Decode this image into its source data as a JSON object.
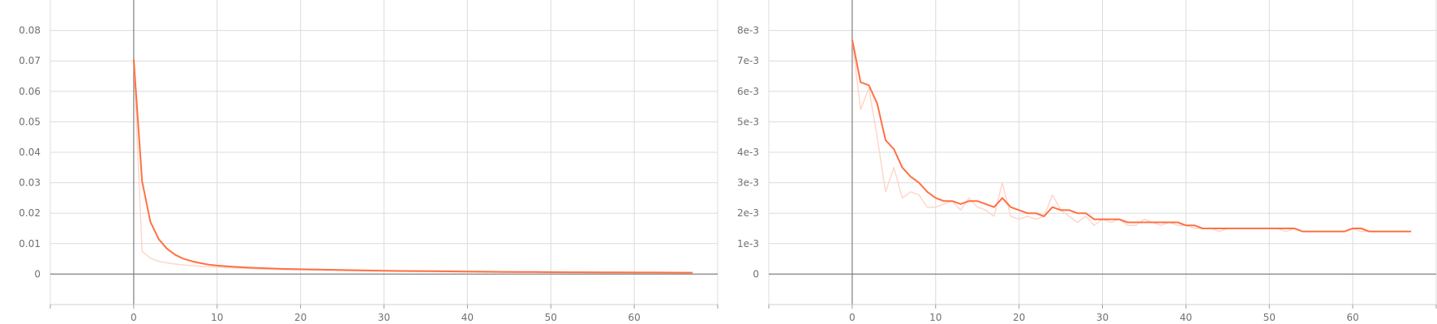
{
  "chart_data": [
    {
      "type": "line",
      "title": "",
      "xlabel": "",
      "ylabel": "",
      "xlim": [
        -10,
        70
      ],
      "ylim": [
        -0.01,
        0.09
      ],
      "grid": true,
      "x_ticks": [
        "0",
        "10",
        "20",
        "30",
        "40",
        "50",
        "60"
      ],
      "x_tick_values": [
        0,
        10,
        20,
        30,
        40,
        50,
        60
      ],
      "y_ticks": [
        "0",
        "0.01",
        "0.02",
        "0.03",
        "0.04",
        "0.05",
        "0.06",
        "0.07",
        "0.08"
      ],
      "y_tick_values": [
        0,
        0.01,
        0.02,
        0.03,
        0.04,
        0.05,
        0.06,
        0.07,
        0.08
      ],
      "colors": {
        "smoothed": "#ff7043",
        "raw": "#ffd6c9",
        "axis": "#808080",
        "grid": "#dcdcdc"
      },
      "series": [
        {
          "style": "raw",
          "x": [
            0,
            1,
            2,
            3,
            4,
            5,
            6,
            7,
            8,
            9,
            10,
            12,
            14,
            16,
            18,
            20,
            22,
            24,
            26,
            28,
            30,
            32,
            34,
            36,
            38,
            40,
            42,
            44,
            46,
            48,
            50,
            52,
            54,
            56,
            58,
            60,
            62,
            64,
            66,
            67
          ],
          "y": [
            0.0705,
            0.0075,
            0.0052,
            0.0042,
            0.0037,
            0.0033,
            0.003,
            0.0028,
            0.0026,
            0.0024,
            0.0023,
            0.002,
            0.0018,
            0.0016,
            0.0015,
            0.0014,
            0.0013,
            0.0012,
            0.0011,
            0.001,
            0.00095,
            0.0009,
            0.00085,
            0.0008,
            0.00075,
            0.0007,
            0.00065,
            0.0006,
            0.00057,
            0.00055,
            0.00052,
            0.0005,
            0.00048,
            0.00046,
            0.00044,
            0.00042,
            0.0004,
            0.00038,
            0.00036,
            0.00035
          ]
        },
        {
          "style": "smoothed",
          "x": [
            0,
            1,
            2,
            3,
            4,
            5,
            6,
            7,
            8,
            9,
            10,
            12,
            14,
            16,
            18,
            20,
            22,
            24,
            26,
            28,
            30,
            32,
            34,
            36,
            38,
            40,
            42,
            44,
            46,
            48,
            50,
            52,
            54,
            56,
            58,
            60,
            62,
            64,
            66,
            67
          ],
          "y": [
            0.0705,
            0.0305,
            0.0172,
            0.0115,
            0.0083,
            0.0063,
            0.005,
            0.0042,
            0.0036,
            0.0031,
            0.0028,
            0.0024,
            0.0021,
            0.0019,
            0.0017,
            0.0016,
            0.0015,
            0.0014,
            0.0013,
            0.0012,
            0.0011,
            0.00105,
            0.001,
            0.00095,
            0.0009,
            0.00085,
            0.0008,
            0.00075,
            0.0007,
            0.00068,
            0.00065,
            0.00062,
            0.0006,
            0.00058,
            0.00056,
            0.00054,
            0.00052,
            0.0005,
            0.00048,
            0.00047
          ]
        }
      ]
    },
    {
      "type": "line",
      "title": "",
      "xlabel": "",
      "ylabel": "",
      "xlim": [
        -10,
        70
      ],
      "ylim": [
        -0.001,
        0.009
      ],
      "grid": true,
      "x_ticks": [
        "0",
        "10",
        "20",
        "30",
        "40",
        "50",
        "60"
      ],
      "x_tick_values": [
        0,
        10,
        20,
        30,
        40,
        50,
        60
      ],
      "y_ticks": [
        "0",
        "1e-3",
        "2e-3",
        "3e-3",
        "4e-3",
        "5e-3",
        "6e-3",
        "7e-3",
        "8e-3"
      ],
      "y_tick_values": [
        0,
        0.001,
        0.002,
        0.003,
        0.004,
        0.005,
        0.006,
        0.007,
        0.008
      ],
      "colors": {
        "smoothed": "#ff7043",
        "raw": "#ffd6c9",
        "axis": "#808080",
        "grid": "#dcdcdc"
      },
      "series": [
        {
          "style": "raw",
          "x": [
            0,
            1,
            2,
            3,
            4,
            5,
            6,
            7,
            8,
            9,
            10,
            11,
            12,
            13,
            14,
            15,
            16,
            17,
            18,
            19,
            20,
            21,
            22,
            23,
            24,
            25,
            26,
            27,
            28,
            29,
            30,
            31,
            32,
            33,
            34,
            35,
            36,
            37,
            38,
            39,
            40,
            41,
            42,
            43,
            44,
            45,
            46,
            47,
            48,
            49,
            50,
            51,
            52,
            53,
            54,
            55,
            56,
            57,
            58,
            59,
            60,
            61,
            62,
            63,
            64,
            65,
            66,
            67
          ],
          "y": [
            0.0077,
            0.0054,
            0.0061,
            0.0045,
            0.0027,
            0.0035,
            0.0025,
            0.0027,
            0.0026,
            0.0022,
            0.0022,
            0.0023,
            0.0024,
            0.0021,
            0.0025,
            0.0022,
            0.0021,
            0.0019,
            0.003,
            0.0019,
            0.0018,
            0.0019,
            0.0018,
            0.0019,
            0.0026,
            0.0021,
            0.0019,
            0.0017,
            0.0019,
            0.0016,
            0.0018,
            0.0017,
            0.0018,
            0.0016,
            0.0016,
            0.0018,
            0.0017,
            0.0016,
            0.0017,
            0.0016,
            0.0016,
            0.0015,
            0.0015,
            0.0015,
            0.0014,
            0.0015,
            0.0015,
            0.0015,
            0.0015,
            0.0015,
            0.0015,
            0.0015,
            0.0014,
            0.0015,
            0.0014,
            0.0014,
            0.0014,
            0.0014,
            0.0014,
            0.0014,
            0.0015,
            0.0014,
            0.0014,
            0.0014,
            0.0014,
            0.0014,
            0.0014,
            0.0014
          ]
        },
        {
          "style": "smoothed",
          "x": [
            0,
            1,
            2,
            3,
            4,
            5,
            6,
            7,
            8,
            9,
            10,
            11,
            12,
            13,
            14,
            15,
            16,
            17,
            18,
            19,
            20,
            21,
            22,
            23,
            24,
            25,
            26,
            27,
            28,
            29,
            30,
            31,
            32,
            33,
            34,
            35,
            36,
            37,
            38,
            39,
            40,
            41,
            42,
            43,
            44,
            45,
            46,
            47,
            48,
            49,
            50,
            51,
            52,
            53,
            54,
            55,
            56,
            57,
            58,
            59,
            60,
            61,
            62,
            63,
            64,
            65,
            66,
            67
          ],
          "y": [
            0.0077,
            0.0063,
            0.0062,
            0.0056,
            0.0044,
            0.0041,
            0.0035,
            0.0032,
            0.003,
            0.0027,
            0.0025,
            0.0024,
            0.0024,
            0.0023,
            0.0024,
            0.0024,
            0.0023,
            0.0022,
            0.0025,
            0.0022,
            0.0021,
            0.002,
            0.002,
            0.0019,
            0.0022,
            0.0021,
            0.0021,
            0.002,
            0.002,
            0.0018,
            0.0018,
            0.0018,
            0.0018,
            0.0017,
            0.0017,
            0.0017,
            0.0017,
            0.0017,
            0.0017,
            0.0017,
            0.0016,
            0.0016,
            0.0015,
            0.0015,
            0.0015,
            0.0015,
            0.0015,
            0.0015,
            0.0015,
            0.0015,
            0.0015,
            0.0015,
            0.0015,
            0.0015,
            0.0014,
            0.0014,
            0.0014,
            0.0014,
            0.0014,
            0.0014,
            0.0015,
            0.0015,
            0.0014,
            0.0014,
            0.0014,
            0.0014,
            0.0014,
            0.0014
          ]
        }
      ]
    }
  ]
}
